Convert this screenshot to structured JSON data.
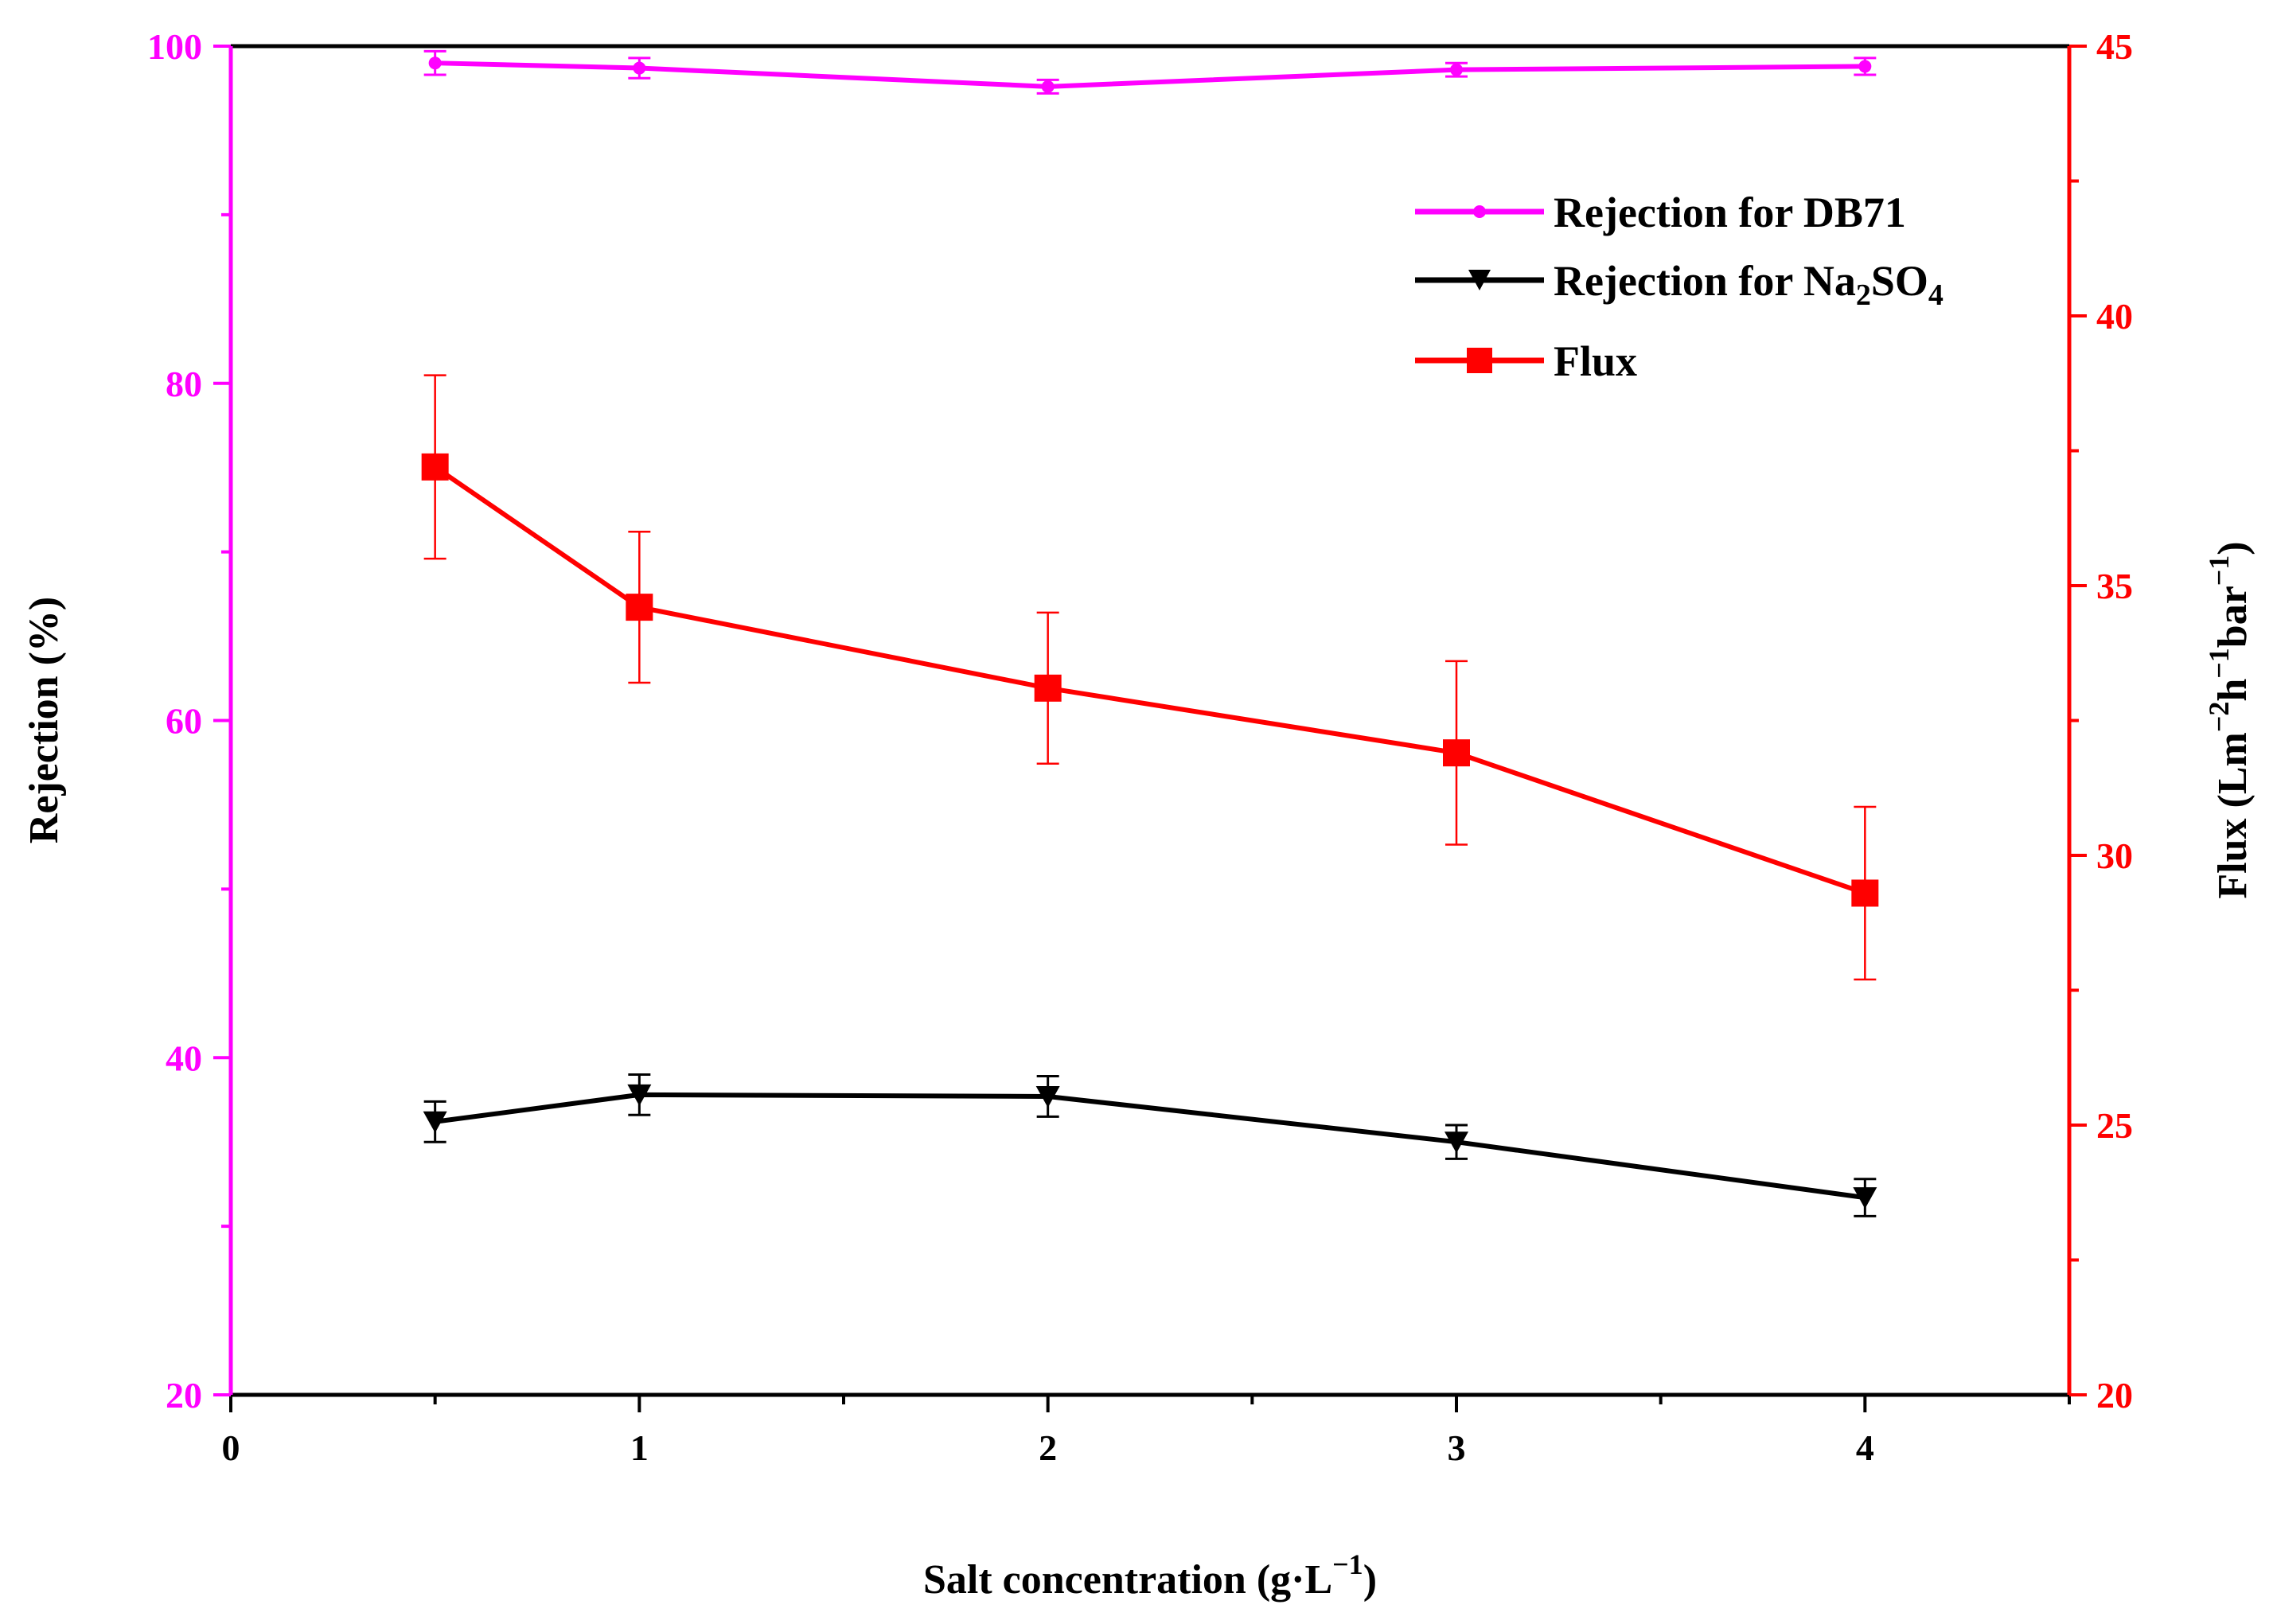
{
  "chart_data": {
    "type": "line",
    "xlabel_main": "Salt concentration (g·L",
    "xlabel_sup": "−1",
    "xlabel_close": ")",
    "ylabel_left": "Rejection (%)",
    "ylabel_right": {
      "prefix": "Flux (Lm",
      "sup1": "−2",
      "mid1": "h",
      "sup2": "−1",
      "mid2": "bar",
      "sup3": "−1",
      "suffix": ")"
    },
    "xlim": [
      0,
      4.5
    ],
    "ylim_left": [
      20,
      100
    ],
    "ylim_right": [
      20,
      45
    ],
    "x_ticks": [
      0,
      1,
      2,
      3,
      4
    ],
    "x_tick_labels": [
      "0",
      "1",
      "2",
      "3",
      "4"
    ],
    "y_left_ticks": [
      20,
      40,
      60,
      80,
      100
    ],
    "y_left_tick_labels": [
      "20",
      "40",
      "60",
      "80",
      "100"
    ],
    "y_right_ticks": [
      20,
      25,
      30,
      35,
      40,
      45
    ],
    "y_right_tick_labels": [
      "20",
      "25",
      "30",
      "35",
      "40",
      "45"
    ],
    "x": [
      0.5,
      1,
      2,
      3,
      4
    ],
    "series": [
      {
        "name": "Rejection for DB71",
        "axis": "left",
        "color": "#ff00ff",
        "marker": "circle",
        "values": [
          99.0,
          98.7,
          97.6,
          98.6,
          98.8
        ],
        "errors": [
          0.7,
          0.6,
          0.4,
          0.4,
          0.5
        ]
      },
      {
        "name": "Rejection for Na",
        "name_sub1": "2",
        "name_mid": "SO",
        "name_sub2": "4",
        "axis": "left",
        "color": "#000000",
        "marker": "triangle-down",
        "values": [
          36.2,
          37.8,
          37.7,
          35.0,
          31.7
        ],
        "errors": [
          1.2,
          1.2,
          1.2,
          1.0,
          1.1
        ]
      },
      {
        "name": "Flux",
        "axis": "right",
        "color": "#ff0000",
        "marker": "square",
        "values": [
          37.2,
          34.6,
          33.1,
          31.9,
          29.3
        ],
        "errors": [
          1.7,
          1.4,
          1.4,
          1.7,
          1.6
        ]
      }
    ],
    "legend_position": "top-right"
  }
}
